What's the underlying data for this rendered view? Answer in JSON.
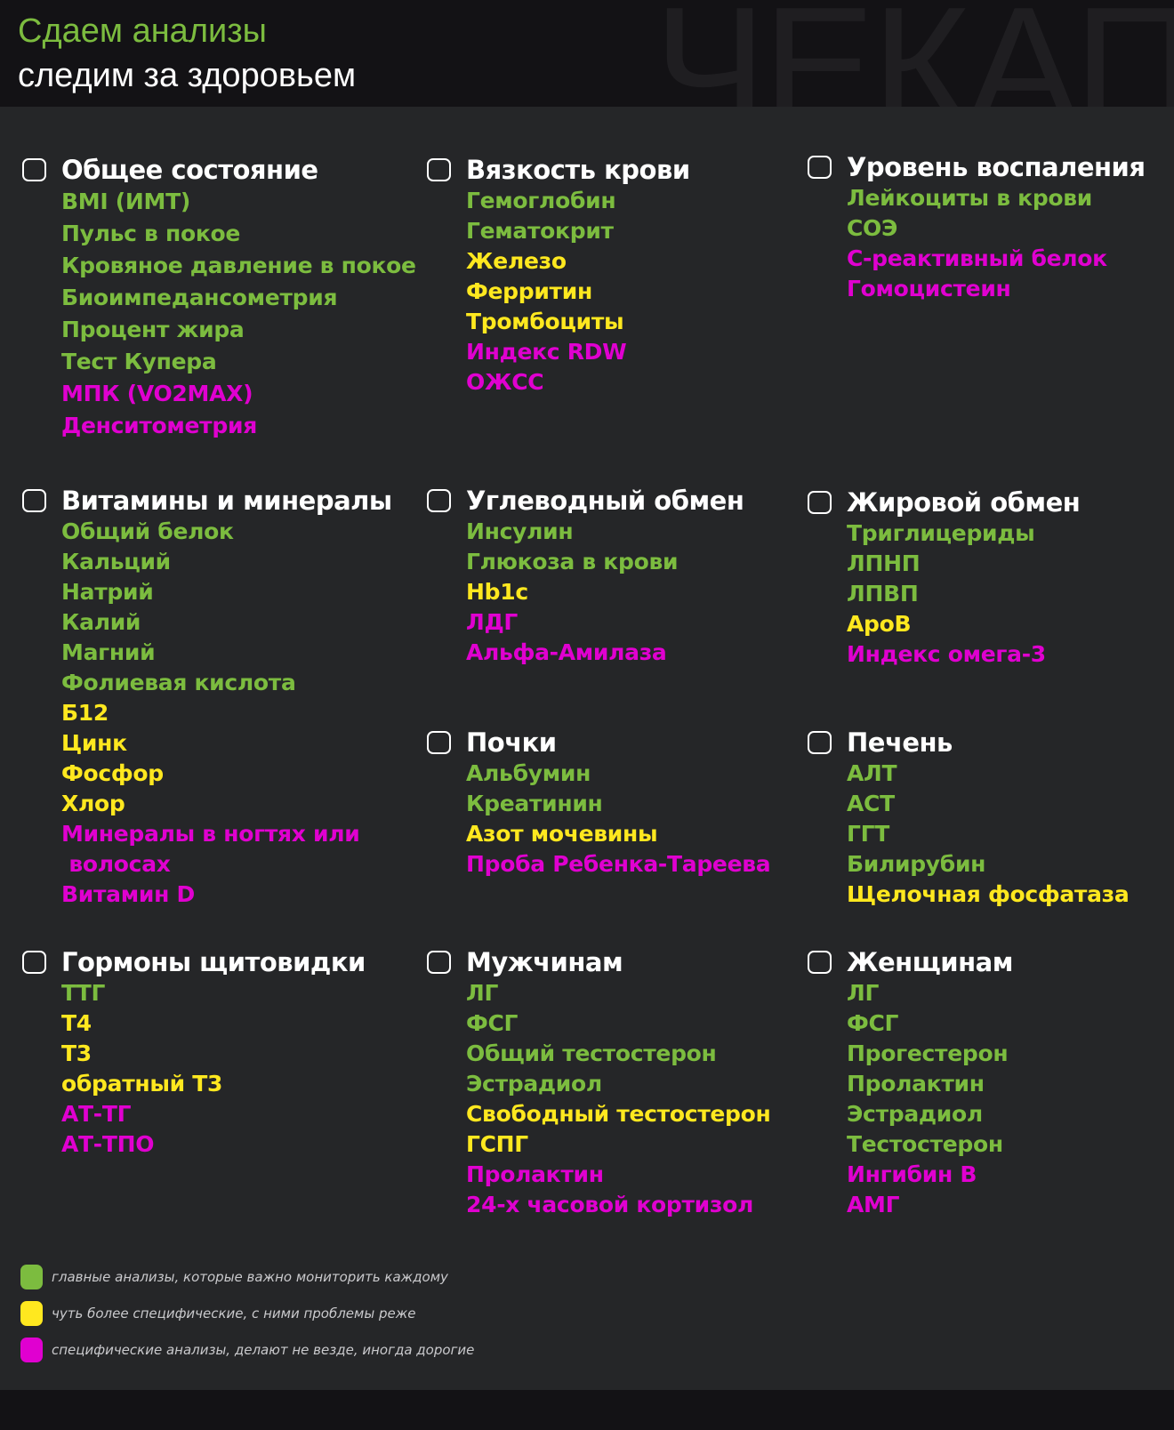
{
  "header": {
    "title": "Сдаем анализы",
    "subtitle": "следим за здоровьем",
    "watermark": "ЧЕКАП"
  },
  "colors": {
    "green": "#7cbc3f",
    "yellow": "#ffe81f",
    "magenta": "#e000d0"
  },
  "sections": [
    {
      "title": "Общее состояние",
      "items": [
        {
          "t": "BMI (ИМТ)",
          "c": "green"
        },
        {
          "t": "Пульс в покое",
          "c": "green"
        },
        {
          "t": "Кровяное давление в покое",
          "c": "green"
        },
        {
          "t": "Биоимпедансометрия",
          "c": "green"
        },
        {
          "t": "Процент жира",
          "c": "green"
        },
        {
          "t": "Тест Купера",
          "c": "green"
        },
        {
          "t": "МПК (VO2MAX)",
          "c": "magenta"
        },
        {
          "t": "Денситометрия",
          "c": "magenta"
        }
      ]
    },
    {
      "title": "Вязкость крови",
      "items": [
        {
          "t": "Гемоглобин",
          "c": "green"
        },
        {
          "t": "Гематокрит",
          "c": "green"
        },
        {
          "t": "Железо",
          "c": "yellow"
        },
        {
          "t": "Ферритин",
          "c": "yellow"
        },
        {
          "t": "Тромбоциты",
          "c": "yellow"
        },
        {
          "t": "Индекс RDW",
          "c": "magenta"
        },
        {
          "t": "ОЖСС",
          "c": "magenta"
        }
      ]
    },
    {
      "title": "Уровень воспаления",
      "items": [
        {
          "t": "Лейкоциты в крови",
          "c": "green"
        },
        {
          "t": "СОЭ",
          "c": "green"
        },
        {
          "t": "С-реактивный белок",
          "c": "magenta"
        },
        {
          "t": "Гомоцистеин",
          "c": "magenta"
        }
      ]
    },
    {
      "title": "Витамины и минералы",
      "items": [
        {
          "t": "Общий белок",
          "c": "green"
        },
        {
          "t": "Кальций",
          "c": "green"
        },
        {
          "t": "Натрий",
          "c": "green"
        },
        {
          "t": "Калий",
          "c": "green"
        },
        {
          "t": "Магний",
          "c": "green"
        },
        {
          "t": "Фолиевая кислота",
          "c": "green"
        },
        {
          "t": "Б12",
          "c": "yellow"
        },
        {
          "t": "Цинк",
          "c": "yellow"
        },
        {
          "t": "Фосфор",
          "c": "yellow"
        },
        {
          "t": "Хлор",
          "c": "yellow"
        },
        {
          "t": "Минералы в ногтях или",
          "c": "magenta"
        },
        {
          "t": " волосах",
          "c": "magenta"
        },
        {
          "t": "Витамин D",
          "c": "magenta"
        }
      ]
    },
    {
      "title": "Углеводный обмен",
      "items": [
        {
          "t": "Инсулин",
          "c": "green"
        },
        {
          "t": "Глюкоза в крови",
          "c": "green"
        },
        {
          "t": "Hb1c",
          "c": "yellow"
        },
        {
          "t": "ЛДГ",
          "c": "magenta"
        },
        {
          "t": "Альфа-Амилаза",
          "c": "magenta"
        }
      ]
    },
    {
      "title": "Жировой обмен",
      "items": [
        {
          "t": "Триглицериды",
          "c": "green"
        },
        {
          "t": "ЛПНП",
          "c": "green"
        },
        {
          "t": "ЛПВП",
          "c": "green"
        },
        {
          "t": "АроВ",
          "c": "yellow"
        },
        {
          "t": "Индекс омега-3",
          "c": "magenta"
        }
      ]
    },
    {
      "title": "Почки",
      "items": [
        {
          "t": "Альбумин",
          "c": "green"
        },
        {
          "t": "Креатинин",
          "c": "green"
        },
        {
          "t": "Азот мочевины",
          "c": "yellow"
        },
        {
          "t": "Проба Ребенка-Тареева",
          "c": "magenta"
        }
      ]
    },
    {
      "title": "Печень",
      "items": [
        {
          "t": "АЛТ",
          "c": "green"
        },
        {
          "t": "АСТ",
          "c": "green"
        },
        {
          "t": "ГГТ",
          "c": "green"
        },
        {
          "t": "Билирубин",
          "c": "green"
        },
        {
          "t": "Щелочная фосфатаза",
          "c": "yellow"
        }
      ]
    },
    {
      "title": "Гормоны щитовидки",
      "items": [
        {
          "t": "ТТГ",
          "c": "green"
        },
        {
          "t": "Т4",
          "c": "yellow"
        },
        {
          "t": "Т3",
          "c": "yellow"
        },
        {
          "t": "обратный Т3",
          "c": "yellow"
        },
        {
          "t": "АТ-ТГ",
          "c": "magenta"
        },
        {
          "t": "АТ-ТПО",
          "c": "magenta"
        }
      ]
    },
    {
      "title": "Мужчинам",
      "items": [
        {
          "t": "ЛГ",
          "c": "green"
        },
        {
          "t": "ФСГ",
          "c": "green"
        },
        {
          "t": "Общий тестостерон",
          "c": "green"
        },
        {
          "t": "Эстрадиол",
          "c": "green"
        },
        {
          "t": "Свободный тестостерон",
          "c": "yellow"
        },
        {
          "t": "ГСПГ",
          "c": "yellow"
        },
        {
          "t": "Пролактин",
          "c": "magenta"
        },
        {
          "t": "24-х часовой кортизол",
          "c": "magenta"
        }
      ]
    },
    {
      "title": "Женщинам",
      "items": [
        {
          "t": "ЛГ",
          "c": "green"
        },
        {
          "t": "ФСГ",
          "c": "green"
        },
        {
          "t": "Прогестерон",
          "c": "green"
        },
        {
          "t": "Пролактин",
          "c": "green"
        },
        {
          "t": "Эстрадиол",
          "c": "green"
        },
        {
          "t": "Тестостерон",
          "c": "green"
        },
        {
          "t": "Ингибин В",
          "c": "magenta"
        },
        {
          "t": "АМГ",
          "c": "magenta"
        }
      ]
    }
  ],
  "legend": [
    {
      "color": "green",
      "text": "главные анализы, которые важно мониторить каждому"
    },
    {
      "color": "yellow",
      "text": "чуть более специфические, с ними проблемы реже"
    },
    {
      "color": "magenta",
      "text": "специфические анализы, делают не везде, иногда дорогие"
    }
  ]
}
